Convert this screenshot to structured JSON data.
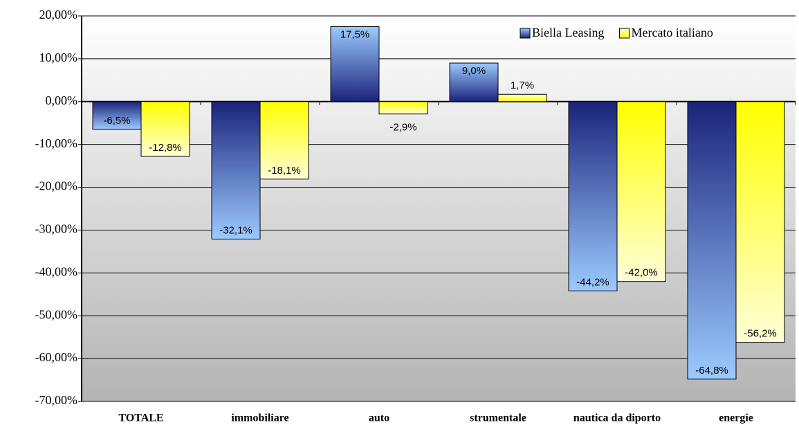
{
  "chart_data": {
    "type": "bar",
    "categories": [
      "TOTALE",
      "immobiliare",
      "auto",
      "strumentale",
      "nautica da diporto",
      "energie"
    ],
    "series": [
      {
        "name": "Biella Leasing",
        "color": "#1a237a",
        "values": [
          -6.5,
          -32.1,
          17.5,
          9.0,
          -44.2,
          -64.8
        ],
        "value_labels": [
          "-6,5%",
          "-32,1%",
          "17,5%",
          "9,0%",
          "-44,2%",
          "-64,8%"
        ]
      },
      {
        "name": "Mercato italiano",
        "color": "#ffff00",
        "values": [
          -12.8,
          -18.1,
          -2.9,
          1.7,
          -42.0,
          -56.2
        ],
        "value_labels": [
          "-12,8%",
          "-18,1%",
          "-2,9%",
          "1,7%",
          "-42,0%",
          "-56,2%"
        ]
      }
    ],
    "ylim": [
      -70,
      20
    ],
    "yticks": [
      {
        "value": 20,
        "label": "20,00%"
      },
      {
        "value": 10,
        "label": "10,00%"
      },
      {
        "value": 0,
        "label": "0,00%"
      },
      {
        "value": -10,
        "label": "-10,00%"
      },
      {
        "value": -20,
        "label": "-20,00%"
      },
      {
        "value": -30,
        "label": "-30,00%"
      },
      {
        "value": -40,
        "label": "-40,00%"
      },
      {
        "value": -50,
        "label": "-50,00%"
      },
      {
        "value": -60,
        "label": "-60,00%"
      },
      {
        "value": -70,
        "label": "-70,00%"
      }
    ],
    "grid": true,
    "legend": "top-right"
  }
}
